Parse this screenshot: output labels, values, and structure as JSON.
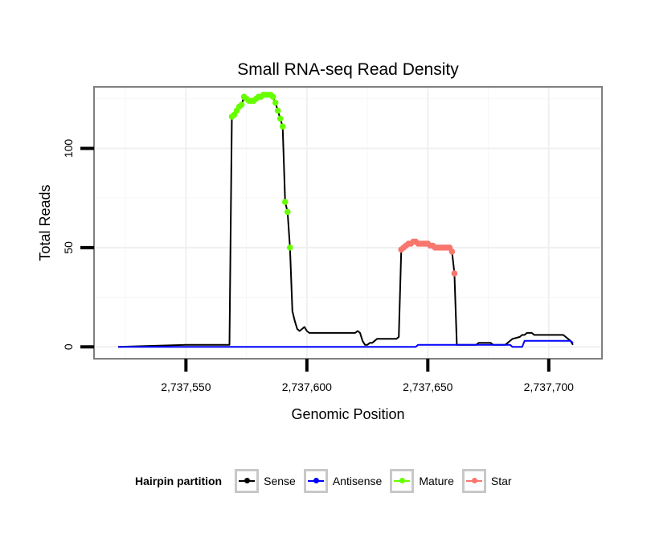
{
  "chart_data": {
    "type": "line",
    "title": "Small RNA-seq Read Density",
    "xlabel": "Genomic Position",
    "ylabel": "Total Reads",
    "xlim": [
      2737512,
      2737722
    ],
    "ylim": [
      -6,
      131
    ],
    "x_ticks": [
      2737550,
      2737600,
      2737650,
      2737700
    ],
    "x_tick_labels": [
      "2,737,550",
      "2,737,600",
      "2,737,650",
      "2,737,700"
    ],
    "y_ticks": [
      0,
      50,
      100
    ],
    "y_tick_labels": [
      "0",
      "50",
      "100"
    ],
    "grid": true,
    "legend_position": "bottom",
    "legend_title": "Hairpin partition",
    "series": [
      {
        "name": "Sense",
        "color": "#000000",
        "points": [
          [
            2737522,
            0
          ],
          [
            2737550,
            1
          ],
          [
            2737568,
            1
          ],
          [
            2737569,
            116
          ],
          [
            2737570,
            117
          ],
          [
            2737571,
            119
          ],
          [
            2737572,
            121
          ],
          [
            2737573,
            122
          ],
          [
            2737574,
            126
          ],
          [
            2737575,
            125
          ],
          [
            2737576,
            124
          ],
          [
            2737577,
            124
          ],
          [
            2737578,
            124
          ],
          [
            2737579,
            125
          ],
          [
            2737580,
            126
          ],
          [
            2737581,
            126
          ],
          [
            2737582,
            127
          ],
          [
            2737583,
            127
          ],
          [
            2737584,
            127
          ],
          [
            2737585,
            127
          ],
          [
            2737586,
            126
          ],
          [
            2737587,
            123
          ],
          [
            2737588,
            119
          ],
          [
            2737589,
            115
          ],
          [
            2737590,
            111
          ],
          [
            2737591,
            73
          ],
          [
            2737592,
            68
          ],
          [
            2737593,
            50
          ],
          [
            2737594,
            18
          ],
          [
            2737595,
            13
          ],
          [
            2737596,
            9
          ],
          [
            2737597,
            8
          ],
          [
            2737598,
            9
          ],
          [
            2737599,
            10
          ],
          [
            2737600,
            8
          ],
          [
            2737601,
            7
          ],
          [
            2737620,
            7
          ],
          [
            2737621,
            8
          ],
          [
            2737622,
            7
          ],
          [
            2737623,
            3
          ],
          [
            2737624,
            1
          ],
          [
            2737625,
            1
          ],
          [
            2737626,
            2
          ],
          [
            2737627,
            2
          ],
          [
            2737628,
            3
          ],
          [
            2737629,
            4
          ],
          [
            2737637,
            4
          ],
          [
            2737638,
            5
          ],
          [
            2737639,
            48
          ],
          [
            2737640,
            49
          ],
          [
            2737641,
            50
          ],
          [
            2737642,
            51
          ],
          [
            2737643,
            52
          ],
          [
            2737644,
            53
          ],
          [
            2737645,
            53
          ],
          [
            2737646,
            52
          ],
          [
            2737647,
            52
          ],
          [
            2737648,
            52
          ],
          [
            2737649,
            52
          ],
          [
            2737650,
            52
          ],
          [
            2737651,
            51
          ],
          [
            2737652,
            51
          ],
          [
            2737653,
            50
          ],
          [
            2737654,
            50
          ],
          [
            2737655,
            50
          ],
          [
            2737656,
            50
          ],
          [
            2737657,
            50
          ],
          [
            2737658,
            50
          ],
          [
            2737659,
            50
          ],
          [
            2737660,
            48
          ],
          [
            2737661,
            37
          ],
          [
            2737662,
            1
          ],
          [
            2737663,
            1
          ],
          [
            2737670,
            1
          ],
          [
            2737671,
            2
          ],
          [
            2737676,
            2
          ],
          [
            2737677,
            1
          ],
          [
            2737682,
            1
          ],
          [
            2737683,
            2
          ],
          [
            2737685,
            4
          ],
          [
            2737688,
            5
          ],
          [
            2737689,
            6
          ],
          [
            2737690,
            6
          ],
          [
            2737691,
            7
          ],
          [
            2737692,
            7
          ],
          [
            2737693,
            7
          ],
          [
            2737694,
            6
          ],
          [
            2737695,
            6
          ],
          [
            2737706,
            6
          ],
          [
            2737707,
            5
          ],
          [
            2737708,
            4
          ],
          [
            2737709,
            3
          ],
          [
            2737710,
            1
          ]
        ]
      },
      {
        "name": "Antisense",
        "color": "#0000ff",
        "points": [
          [
            2737522,
            0
          ],
          [
            2737645,
            0
          ],
          [
            2737646,
            1
          ],
          [
            2737684,
            1
          ],
          [
            2737685,
            0
          ],
          [
            2737689,
            0
          ],
          [
            2737690,
            3
          ],
          [
            2737709,
            3
          ],
          [
            2737710,
            2
          ]
        ]
      },
      {
        "name": "Mature",
        "color": "#66ff00",
        "points": [
          [
            2737569,
            116
          ],
          [
            2737570,
            117
          ],
          [
            2737571,
            119
          ],
          [
            2737572,
            121
          ],
          [
            2737573,
            122
          ],
          [
            2737574,
            126
          ],
          [
            2737575,
            125
          ],
          [
            2737576,
            124
          ],
          [
            2737577,
            124
          ],
          [
            2737578,
            124
          ],
          [
            2737579,
            125
          ],
          [
            2737580,
            126
          ],
          [
            2737581,
            126
          ],
          [
            2737582,
            127
          ],
          [
            2737583,
            127
          ],
          [
            2737584,
            127
          ],
          [
            2737585,
            127
          ],
          [
            2737586,
            126
          ],
          [
            2737587,
            123
          ],
          [
            2737588,
            119
          ],
          [
            2737589,
            115
          ],
          [
            2737590,
            111
          ],
          [
            2737591,
            73
          ],
          [
            2737592,
            68
          ],
          [
            2737593,
            50
          ]
        ]
      },
      {
        "name": "Star",
        "color": "#f8766d",
        "points": [
          [
            2737639,
            49
          ],
          [
            2737640,
            50
          ],
          [
            2737641,
            51
          ],
          [
            2737642,
            52
          ],
          [
            2737643,
            52
          ],
          [
            2737644,
            53
          ],
          [
            2737645,
            53
          ],
          [
            2737646,
            52
          ],
          [
            2737647,
            52
          ],
          [
            2737648,
            52
          ],
          [
            2737649,
            52
          ],
          [
            2737650,
            52
          ],
          [
            2737651,
            51
          ],
          [
            2737652,
            51
          ],
          [
            2737653,
            50
          ],
          [
            2737654,
            50
          ],
          [
            2737655,
            50
          ],
          [
            2737656,
            50
          ],
          [
            2737657,
            50
          ],
          [
            2737658,
            50
          ],
          [
            2737659,
            50
          ],
          [
            2737660,
            48
          ],
          [
            2737661,
            37
          ]
        ]
      }
    ]
  }
}
